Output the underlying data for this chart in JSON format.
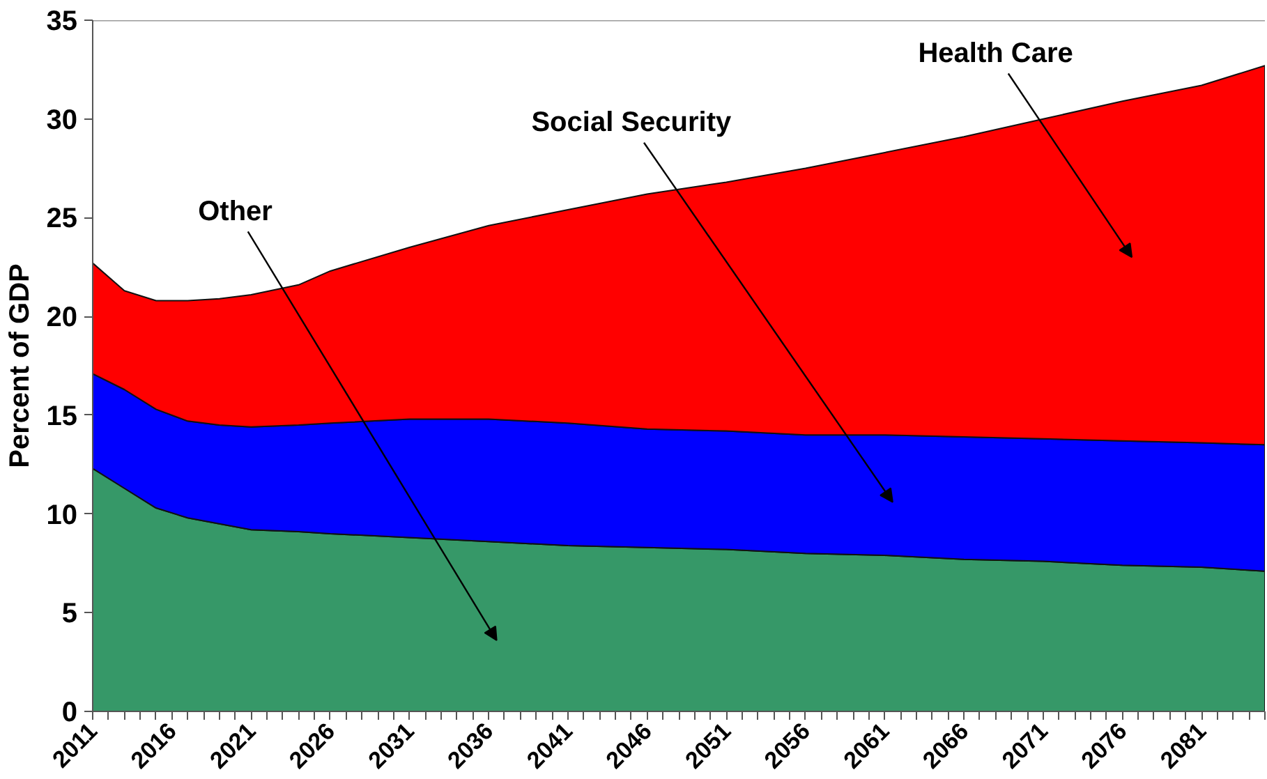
{
  "chart_data": {
    "type": "area",
    "stacked": true,
    "ylabel": "Percent of GDP",
    "x": [
      2011,
      2013,
      2015,
      2017,
      2019,
      2021,
      2024,
      2026,
      2031,
      2036,
      2041,
      2046,
      2051,
      2056,
      2061,
      2066,
      2071,
      2076,
      2081,
      2085
    ],
    "series": [
      {
        "name": "Other",
        "color": "#369868",
        "values": [
          12.3,
          11.3,
          10.3,
          9.8,
          9.5,
          9.2,
          9.1,
          9.0,
          8.8,
          8.6,
          8.4,
          8.3,
          8.2,
          8.0,
          7.9,
          7.7,
          7.6,
          7.4,
          7.3,
          7.1
        ]
      },
      {
        "name": "Social Security",
        "color": "#0000ff",
        "values": [
          4.8,
          5.0,
          5.0,
          4.9,
          5.0,
          5.2,
          5.4,
          5.6,
          6.0,
          6.2,
          6.2,
          6.0,
          6.0,
          6.0,
          6.1,
          6.2,
          6.2,
          6.3,
          6.3,
          6.4
        ]
      },
      {
        "name": "Health Care",
        "color": "#ff0000",
        "values": [
          5.6,
          5.0,
          5.5,
          6.1,
          6.4,
          6.7,
          7.1,
          7.7,
          8.7,
          9.8,
          10.8,
          11.9,
          12.6,
          13.5,
          14.3,
          15.2,
          16.2,
          17.2,
          18.1,
          19.2
        ]
      }
    ],
    "xlim": [
      2011,
      2085
    ],
    "ylim": [
      0,
      35
    ],
    "yticks": [
      0,
      5,
      10,
      15,
      20,
      25,
      30,
      35
    ],
    "xticks": [
      2011,
      {
        "value": 2012,
        "label": null
      },
      {
        "value": 2013,
        "label": null
      },
      {
        "value": 2014,
        "label": null
      },
      {
        "value": 2015,
        "label": null
      },
      2016,
      {
        "value": 2017,
        "label": null
      },
      {
        "value": 2018,
        "label": null
      },
      {
        "value": 2019,
        "label": null
      },
      {
        "value": 2020,
        "label": null
      },
      2021,
      {
        "value": 2022,
        "label": null
      },
      {
        "value": 2023,
        "label": null
      },
      {
        "value": 2024,
        "label": null
      },
      {
        "value": 2025,
        "label": null
      },
      2026,
      {
        "value": 2027,
        "label": null
      },
      {
        "value": 2028,
        "label": null
      },
      {
        "value": 2029,
        "label": null
      },
      {
        "value": 2030,
        "label": null
      },
      2031,
      {
        "value": 2032,
        "label": null
      },
      {
        "value": 2033,
        "label": null
      },
      {
        "value": 2034,
        "label": null
      },
      {
        "value": 2035,
        "label": null
      },
      2036,
      {
        "value": 2037,
        "label": null
      },
      {
        "value": 2038,
        "label": null
      },
      {
        "value": 2039,
        "label": null
      },
      {
        "value": 2040,
        "label": null
      },
      2041,
      {
        "value": 2042,
        "label": null
      },
      {
        "value": 2043,
        "label": null
      },
      {
        "value": 2044,
        "label": null
      },
      {
        "value": 2045,
        "label": null
      },
      2046,
      {
        "value": 2047,
        "label": null
      },
      {
        "value": 2048,
        "label": null
      },
      {
        "value": 2049,
        "label": null
      },
      {
        "value": 2050,
        "label": null
      },
      2051,
      {
        "value": 2052,
        "label": null
      },
      {
        "value": 2053,
        "label": null
      },
      {
        "value": 2054,
        "label": null
      },
      {
        "value": 2055,
        "label": null
      },
      2056,
      {
        "value": 2057,
        "label": null
      },
      {
        "value": 2058,
        "label": null
      },
      {
        "value": 2059,
        "label": null
      },
      {
        "value": 2060,
        "label": null
      },
      2061,
      {
        "value": 2062,
        "label": null
      },
      {
        "value": 2063,
        "label": null
      },
      {
        "value": 2064,
        "label": null
      },
      {
        "value": 2065,
        "label": null
      },
      2066,
      {
        "value": 2067,
        "label": null
      },
      {
        "value": 2068,
        "label": null
      },
      {
        "value": 2069,
        "label": null
      },
      {
        "value": 2070,
        "label": null
      },
      2071,
      {
        "value": 2072,
        "label": null
      },
      {
        "value": 2073,
        "label": null
      },
      {
        "value": 2074,
        "label": null
      },
      {
        "value": 2075,
        "label": null
      },
      2076,
      {
        "value": 2077,
        "label": null
      },
      {
        "value": 2078,
        "label": null
      },
      {
        "value": 2079,
        "label": null
      },
      {
        "value": 2080,
        "label": null
      },
      2081,
      {
        "value": 2082,
        "label": null
      },
      {
        "value": 2083,
        "label": null
      },
      {
        "value": 2084,
        "label": null
      },
      {
        "value": 2085,
        "label": null
      }
    ],
    "grid": false
  }
}
